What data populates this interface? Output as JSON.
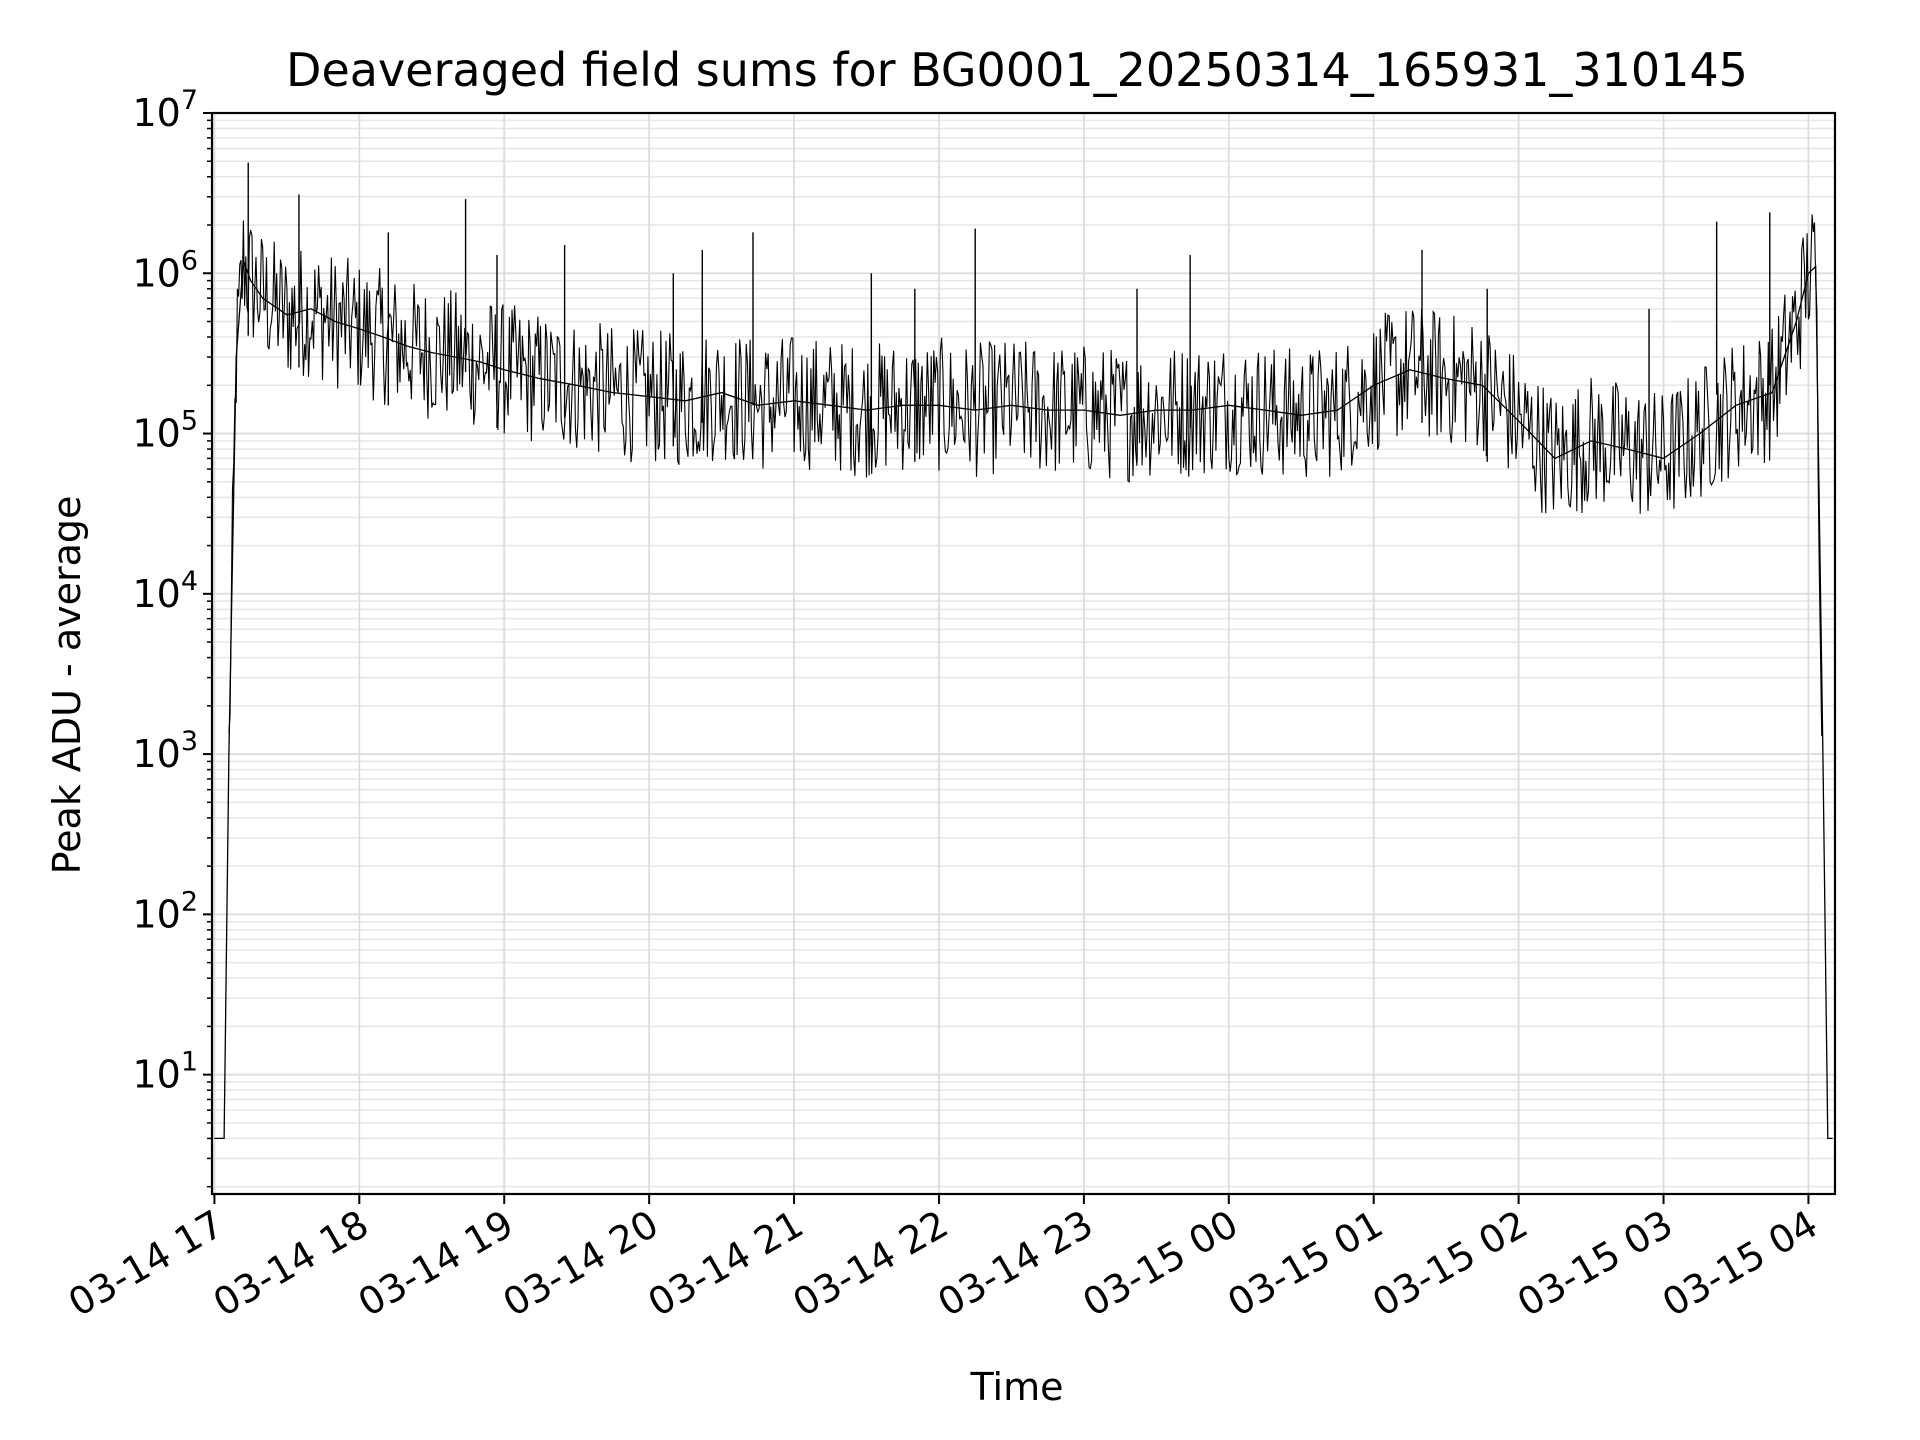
{
  "chart_data": {
    "type": "line",
    "title": "Deaveraged field sums for BG0001_20250314_165931_310145",
    "xlabel": "Time",
    "ylabel": "Peak ADU - average",
    "yscale": "log",
    "ylim": [
      1.8,
      10000000
    ],
    "xlim": [
      "2025-03-14T16:59",
      "2025-03-15T04:11"
    ],
    "grid": true,
    "x_ticks": [
      "03-14 17",
      "03-14 18",
      "03-14 19",
      "03-14 20",
      "03-14 21",
      "03-14 22",
      "03-14 23",
      "03-15 00",
      "03-15 01",
      "03-15 02",
      "03-15 03",
      "03-15 04"
    ],
    "y_ticks": [
      {
        "base": "10",
        "exp": "1"
      },
      {
        "base": "10",
        "exp": "2"
      },
      {
        "base": "10",
        "exp": "3"
      },
      {
        "base": "10",
        "exp": "4"
      },
      {
        "base": "10",
        "exp": "5"
      },
      {
        "base": "10",
        "exp": "6"
      },
      {
        "base": "10",
        "exp": "7"
      }
    ],
    "series": [
      {
        "color": "#000000",
        "x": [
          "2025-03-14T17:00",
          "2025-03-14T17:04",
          "2025-03-14T17:06",
          "2025-03-14T17:09",
          "2025-03-14T17:12",
          "2025-03-14T17:15",
          "2025-03-14T17:20",
          "2025-03-14T17:30",
          "2025-03-14T17:40",
          "2025-03-14T17:50",
          "2025-03-14T18:00",
          "2025-03-14T18:10",
          "2025-03-14T18:20",
          "2025-03-14T18:30",
          "2025-03-14T18:40",
          "2025-03-14T18:50",
          "2025-03-14T19:00",
          "2025-03-14T19:15",
          "2025-03-14T19:30",
          "2025-03-14T19:45",
          "2025-03-14T20:00",
          "2025-03-14T20:15",
          "2025-03-14T20:30",
          "2025-03-14T20:45",
          "2025-03-14T21:00",
          "2025-03-14T21:15",
          "2025-03-14T21:30",
          "2025-03-14T21:45",
          "2025-03-14T22:00",
          "2025-03-14T22:15",
          "2025-03-14T22:30",
          "2025-03-14T22:45",
          "2025-03-14T23:00",
          "2025-03-14T23:15",
          "2025-03-14T23:30",
          "2025-03-14T23:45",
          "2025-03-15T00:00",
          "2025-03-15T00:15",
          "2025-03-15T00:30",
          "2025-03-15T00:45",
          "2025-03-15T01:00",
          "2025-03-15T01:15",
          "2025-03-15T01:30",
          "2025-03-15T01:45",
          "2025-03-15T02:00",
          "2025-03-15T02:15",
          "2025-03-15T02:30",
          "2025-03-15T02:45",
          "2025-03-15T03:00",
          "2025-03-15T03:15",
          "2025-03-15T03:30",
          "2025-03-15T03:45",
          "2025-03-15T03:55",
          "2025-03-15T04:00",
          "2025-03-15T04:03",
          "2025-03-15T04:06",
          "2025-03-15T04:08",
          "2025-03-15T04:10"
        ],
        "y": [
          4,
          4,
          1000,
          300000,
          1200000,
          900000,
          700000,
          550000,
          600000,
          500000,
          450000,
          400000,
          350000,
          320000,
          300000,
          280000,
          250000,
          220000,
          200000,
          180000,
          170000,
          160000,
          180000,
          150000,
          160000,
          150000,
          140000,
          150000,
          150000,
          140000,
          150000,
          140000,
          140000,
          130000,
          140000,
          140000,
          150000,
          140000,
          130000,
          140000,
          200000,
          250000,
          220000,
          200000,
          120000,
          70000,
          90000,
          80000,
          70000,
          100000,
          150000,
          180000,
          500000,
          1000000,
          1100000,
          1000,
          4,
          4
        ],
        "spikes": [
          {
            "x": "2025-03-14T17:14",
            "y": 4900000
          },
          {
            "x": "2025-03-14T17:35",
            "y": 3100000
          },
          {
            "x": "2025-03-14T18:12",
            "y": 1800000
          },
          {
            "x": "2025-03-14T18:44",
            "y": 2900000
          },
          {
            "x": "2025-03-14T18:57",
            "y": 1300000
          },
          {
            "x": "2025-03-14T19:25",
            "y": 1500000
          },
          {
            "x": "2025-03-14T20:10",
            "y": 1000000
          },
          {
            "x": "2025-03-14T20:22",
            "y": 1400000
          },
          {
            "x": "2025-03-14T20:43",
            "y": 1800000
          },
          {
            "x": "2025-03-14T21:32",
            "y": 1000000
          },
          {
            "x": "2025-03-14T21:50",
            "y": 800000
          },
          {
            "x": "2025-03-14T22:15",
            "y": 1900000
          },
          {
            "x": "2025-03-14T23:22",
            "y": 800000
          },
          {
            "x": "2025-03-14T23:44",
            "y": 1300000
          },
          {
            "x": "2025-03-15T01:20",
            "y": 1400000
          },
          {
            "x": "2025-03-15T01:47",
            "y": 800000
          },
          {
            "x": "2025-03-15T02:54",
            "y": 600000
          },
          {
            "x": "2025-03-15T03:22",
            "y": 2100000
          },
          {
            "x": "2025-03-15T03:44",
            "y": 2400000
          }
        ]
      }
    ]
  }
}
